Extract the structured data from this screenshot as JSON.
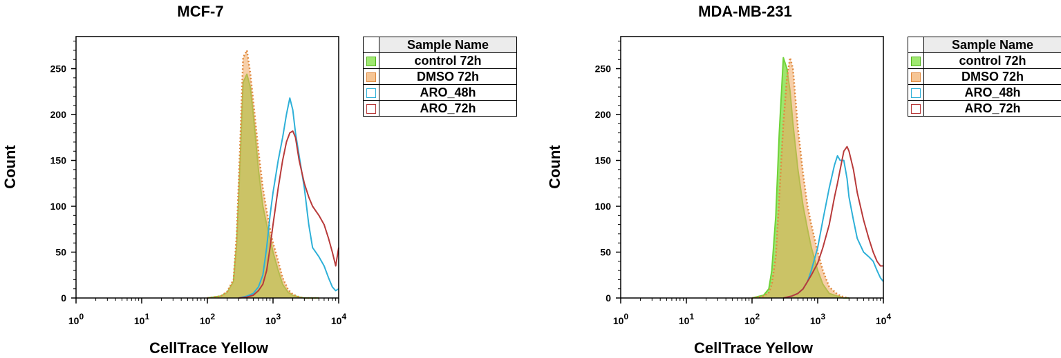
{
  "colors": {
    "control": "#7ddc3c",
    "dmso": "#f0a860",
    "aro48": "#2eb0d8",
    "aro72": "#b83a3a"
  },
  "chart_data": [
    {
      "type": "area",
      "title": "MCF-7",
      "xlabel": "CellTrace Yellow",
      "ylabel": "Count",
      "xscale": "log",
      "xlim": [
        1,
        10000
      ],
      "ylim": [
        0,
        285
      ],
      "xticks": [
        1,
        10,
        100,
        1000,
        10000
      ],
      "yticks": [
        0,
        50,
        100,
        150,
        200,
        250
      ],
      "legend_header": "Sample Name",
      "legend_position": "right",
      "series": [
        {
          "name": "control 72h",
          "style": "filled",
          "x": [
            100,
            160,
            200,
            250,
            280,
            320,
            350,
            400,
            450,
            500,
            600,
            700,
            800,
            900,
            1000,
            1200,
            1400,
            1700,
            2000,
            2500,
            3000,
            4000,
            5000
          ],
          "y": [
            0,
            2,
            6,
            18,
            60,
            160,
            235,
            244,
            230,
            200,
            140,
            100,
            80,
            65,
            50,
            30,
            15,
            6,
            3,
            1,
            0,
            0,
            0
          ]
        },
        {
          "name": "DMSO 72h",
          "style": "filled-dotted",
          "x": [
            100,
            160,
            200,
            250,
            280,
            320,
            350,
            400,
            450,
            500,
            600,
            700,
            800,
            900,
            1000,
            1200,
            1400,
            1700,
            2000,
            2500,
            3000,
            4000,
            5000
          ],
          "y": [
            0,
            2,
            7,
            20,
            70,
            180,
            262,
            270,
            245,
            215,
            160,
            120,
            95,
            75,
            60,
            40,
            22,
            9,
            4,
            1,
            0,
            0,
            0
          ]
        },
        {
          "name": "ARO_48h",
          "style": "line",
          "x": [
            300,
            400,
            500,
            600,
            700,
            800,
            900,
            1000,
            1200,
            1400,
            1600,
            1800,
            2000,
            2200,
            2500,
            3000,
            3500,
            4000,
            5000,
            6000,
            7000,
            8000,
            9000,
            10000
          ],
          "y": [
            0,
            2,
            5,
            12,
            25,
            55,
            90,
            115,
            150,
            175,
            200,
            218,
            205,
            180,
            155,
            120,
            80,
            55,
            45,
            35,
            22,
            12,
            8,
            10
          ]
        },
        {
          "name": "ARO_72h",
          "style": "line",
          "x": [
            300,
            400,
            500,
            600,
            700,
            800,
            900,
            1000,
            1200,
            1400,
            1600,
            1800,
            2000,
            2200,
            2500,
            3000,
            3500,
            4000,
            5000,
            6000,
            7000,
            8000,
            9000,
            10000
          ],
          "y": [
            0,
            1,
            3,
            8,
            15,
            30,
            55,
            80,
            120,
            150,
            170,
            180,
            182,
            175,
            150,
            125,
            110,
            100,
            90,
            80,
            65,
            50,
            35,
            55
          ]
        }
      ]
    },
    {
      "type": "area",
      "title": "MDA-MB-231",
      "xlabel": "CellTrace Yellow",
      "ylabel": "Count",
      "xscale": "log",
      "xlim": [
        1,
        10000
      ],
      "ylim": [
        0,
        285
      ],
      "xticks": [
        1,
        10,
        100,
        1000,
        10000
      ],
      "yticks": [
        0,
        50,
        100,
        150,
        200,
        250
      ],
      "legend_header": "Sample Name",
      "legend_position": "right",
      "series": [
        {
          "name": "control 72h",
          "style": "filled",
          "x": [
            100,
            150,
            180,
            200,
            230,
            260,
            300,
            340,
            380,
            420,
            500,
            600,
            700,
            800,
            1000,
            1200,
            1500,
            2000,
            2500,
            3000
          ],
          "y": [
            0,
            3,
            10,
            30,
            90,
            180,
            262,
            250,
            225,
            190,
            140,
            100,
            75,
            55,
            30,
            15,
            5,
            2,
            0,
            0
          ]
        },
        {
          "name": "DMSO 72h",
          "style": "filled-dotted",
          "x": [
            100,
            150,
            180,
            200,
            230,
            260,
            300,
            340,
            380,
            420,
            500,
            600,
            700,
            800,
            1000,
            1200,
            1500,
            2000,
            2500,
            3000
          ],
          "y": [
            0,
            2,
            6,
            15,
            45,
            110,
            190,
            240,
            262,
            250,
            185,
            135,
            100,
            80,
            50,
            30,
            12,
            4,
            1,
            0
          ]
        },
        {
          "name": "ARO_48h",
          "style": "line",
          "x": [
            300,
            400,
            500,
            600,
            700,
            800,
            1000,
            1200,
            1500,
            1800,
            2000,
            2200,
            2500,
            2800,
            3000,
            3500,
            4000,
            5000,
            6000,
            7000,
            8000,
            9000,
            10000
          ],
          "y": [
            0,
            2,
            5,
            10,
            18,
            30,
            55,
            85,
            120,
            145,
            155,
            150,
            150,
            130,
            110,
            85,
            65,
            50,
            45,
            40,
            30,
            22,
            18
          ]
        },
        {
          "name": "ARO_72h",
          "style": "line",
          "x": [
            300,
            400,
            500,
            600,
            700,
            800,
            1000,
            1200,
            1500,
            1800,
            2000,
            2200,
            2500,
            2800,
            3000,
            3500,
            4000,
            5000,
            6000,
            7000,
            8000,
            9000,
            10000
          ],
          "y": [
            0,
            2,
            5,
            10,
            18,
            25,
            38,
            55,
            80,
            110,
            125,
            140,
            160,
            165,
            160,
            140,
            115,
            85,
            65,
            50,
            40,
            35,
            35
          ]
        }
      ]
    }
  ]
}
